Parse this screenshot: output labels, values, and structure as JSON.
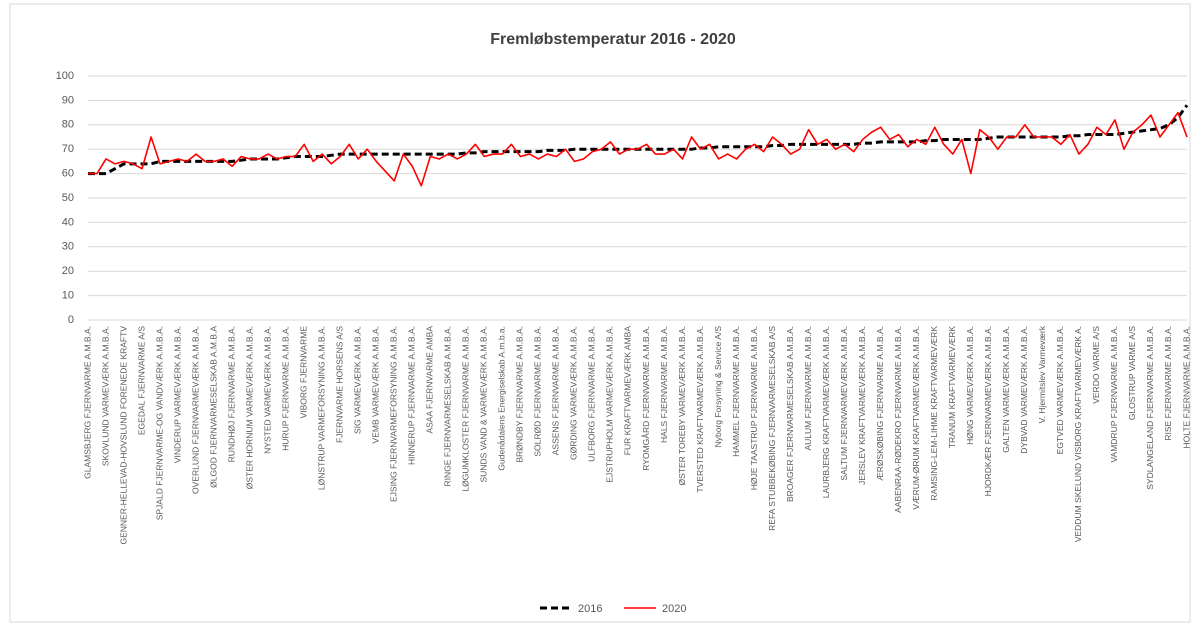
{
  "chart_data": {
    "type": "line",
    "title": "Fremløbstemperatur 2016 - 2020",
    "categories": [
      "GLAMSBJERG FJERNVARME A.M.B.A.",
      null,
      "SKOVLUND VARMEVÆRK A.M.B.A.",
      null,
      "GENNER-HELLEVAD-HOVSLUND FORENEDE KRAFTV",
      null,
      "EGEDAL FJERNVARME A/S",
      null,
      "SPJALD FJERNVARME-OG VANDVÆRK A.M.B.A.",
      null,
      "VINDERUP VARMEVÆRK A.M.B.A.",
      null,
      "OVERLUND FJERNVARMEVÆRK A.M.B.A.",
      null,
      "ØLGOD FJERNVARMESELSKAB A.M.B.A",
      null,
      "RUNDHØJ FJERNVARME A.M.B.A.",
      null,
      "ØSTER HORNUM VARMEVÆRK A.M.B.A.",
      null,
      "NYSTED VARMEVÆRK A.M.B.A.",
      null,
      "HURUP FJERNVARME A.M.B.A.",
      null,
      "VIBORG FJERNVARME",
      null,
      "LØNSTRUP VARMEFORSYNING A.M.B.A.",
      null,
      "FJERNVARME HORSENS A/S",
      null,
      "SIG VARMEVÆRK A.M.B.A.",
      null,
      "VEMB VARMEVÆRK A.M.B.A.",
      null,
      "EJSING FJERNVARMEFORSYNING A.M.B.A.",
      null,
      "HINNERUP FJERNVARME A.M.B.A.",
      null,
      "ASAA FJERNVARME AMBA",
      null,
      "RINGE FJERNVARMESELSKAB A.M.B.A.",
      null,
      "LØGUMKLOSTER FJERNVARME A.M.B.A.",
      null,
      "SUNDS VAND & VARMEVÆRK A.M.B.A.",
      null,
      "Gudenådalens Energiselskab A.m.b.a.",
      null,
      "BRØNDBY FJERNVARME A.M.B.A.",
      null,
      "SOLRØD FJERNVARME A.M.B.A.",
      null,
      "ASSENS FJERNVARME A.M.B.A.",
      null,
      "GØRDING VARMEVÆRK A.M.B.A.",
      null,
      "ULFBORG FJERNVARME A.M.B.A.",
      null,
      "EJSTRUPHOLM VARMEVÆRK A.M.B.A.",
      null,
      "FUR KRAFTVARMEVÆRK AMBA",
      null,
      "RYOMGÅRD FJERNVARME A.M.B.A.",
      null,
      "HALS FJERNVARME A.M.B.A.",
      null,
      "ØSTER TOREBY VARMEVÆRK A.M.B.A.",
      null,
      "TVERSTED KRAFTVARMEVÆRK A.M.B.A.",
      null,
      "Nyborg Forsyning & Service A/S",
      null,
      "HAMMEL FJERNVARME A.M.B.A.",
      null,
      "HØJE TAASTRUP FJERNVARME A.M.B.A.",
      null,
      "REFA STUBBEKØBING FJERNVARMESELSKAB A/S",
      null,
      "BROAGER FJERNVARMESELSKAB A.M.B.A.",
      null,
      "AULUM FJERNVARME A.M.B.A.",
      null,
      "LAURBJERG KRAFTVARMEVÆRK A.M.B.A.",
      null,
      "SALTUM FJERNVARMEVÆRK A.M.B.A.",
      null,
      "JERSLEV KRAFTVARMEVÆRK A.M.B.A.",
      null,
      "ÆRØSKØBING FJERNVARME A.M.B.A.",
      null,
      "AABENRAA-RØDEKRO FJERNVARME A.M.B.A.",
      null,
      "VÆRUM-ØRUM KRAFTVARMEVÆRK A.M.B.A.",
      null,
      "RAMSING-LEM-LIHME KRAFTVARMEVÆRK",
      null,
      "TRANUM KRAFTVARMEVÆRK",
      null,
      "HØNG VARMEVÆRK A.M.B.A.",
      null,
      "HJORDKÆR FJERNVARMEVÆRK A.M.B.A.",
      null,
      "GALTEN VARMEVÆRK A.M.B.A.",
      null,
      "DYBVAD VARMEVÆRK A.M.B.A.",
      null,
      "V. Hjermitslev Varmeværk",
      null,
      "EGTVED VARMEVÆRK A.M.B.A.",
      null,
      "VEDDUM SKELUND VISBORG KRAFTVARMEVÆRK A.",
      null,
      "VERDO VARME A/S",
      null,
      "VAMDRUP FJERNVARME A.M.B.A.",
      null,
      "GLOSTRUP VARME A/S",
      null,
      "SYDLANGELAND FJERNVARME A.M.B.A.",
      null,
      "RISE FJERNVARME A.M.B.A.",
      null,
      "HOLTE FJERNVARME A.M.B.A."
    ],
    "series": [
      {
        "name": "2016",
        "color": "#000000",
        "dash": true,
        "values": [
          60,
          60,
          60,
          62,
          64,
          64,
          64,
          64,
          65,
          65,
          65,
          65,
          65,
          65,
          65,
          65,
          65,
          65.5,
          66,
          66,
          66,
          66,
          66.5,
          67,
          67,
          67,
          67,
          67.5,
          68,
          68,
          68,
          68,
          68,
          68,
          68,
          68,
          68,
          68,
          68,
          68,
          68,
          68,
          68.5,
          68.5,
          69,
          69,
          69,
          69,
          69,
          69,
          69,
          69.5,
          69.5,
          69.5,
          70,
          70,
          70,
          70,
          70,
          70,
          70,
          70,
          70,
          70,
          70,
          70,
          70,
          70,
          70.5,
          70.5,
          71,
          71,
          71,
          71,
          71,
          71,
          71.5,
          71.5,
          72,
          72,
          72,
          72,
          72,
          72,
          72,
          72,
          72.5,
          72.5,
          73,
          73,
          73,
          73,
          73,
          73.5,
          73.5,
          74,
          74,
          74,
          74,
          74,
          74.5,
          75,
          75,
          75,
          75,
          75,
          75,
          75,
          75,
          75.5,
          75.5,
          76,
          76,
          76,
          76,
          76.5,
          77,
          77.5,
          78,
          78.5,
          80,
          83,
          88
        ]
      },
      {
        "name": "2020",
        "color": "#ff0000",
        "dash": false,
        "values": [
          60,
          60,
          66,
          64,
          65,
          64,
          62,
          75,
          64,
          65,
          66,
          65,
          68,
          65,
          65,
          66,
          63,
          67,
          66,
          66,
          68,
          66,
          67,
          67,
          72,
          65,
          68,
          64,
          67,
          72,
          66,
          70,
          65,
          61,
          57,
          68,
          63,
          55,
          67,
          66,
          68,
          66,
          68,
          72,
          67,
          68,
          68,
          72,
          67,
          68,
          66,
          68,
          67,
          70,
          65,
          66,
          69,
          70,
          73,
          68,
          70,
          70,
          72,
          68,
          68,
          70,
          66,
          75,
          70,
          72,
          66,
          68,
          66,
          70,
          72,
          69,
          75,
          72,
          68,
          70,
          78,
          72,
          74,
          70,
          72,
          69,
          74,
          77,
          79,
          74,
          76,
          71,
          74,
          72,
          79,
          72,
          68,
          74,
          60,
          78,
          75,
          70,
          75,
          75,
          80,
          75,
          75,
          75,
          72,
          76,
          68,
          72,
          79,
          76,
          82,
          70,
          77,
          80,
          84,
          75,
          80,
          85,
          75
        ]
      }
    ],
    "ylim": [
      0,
      100
    ],
    "yticks": [
      0,
      10,
      20,
      30,
      40,
      50,
      60,
      70,
      80,
      90,
      100
    ],
    "grid": true,
    "legend": "bottom"
  }
}
